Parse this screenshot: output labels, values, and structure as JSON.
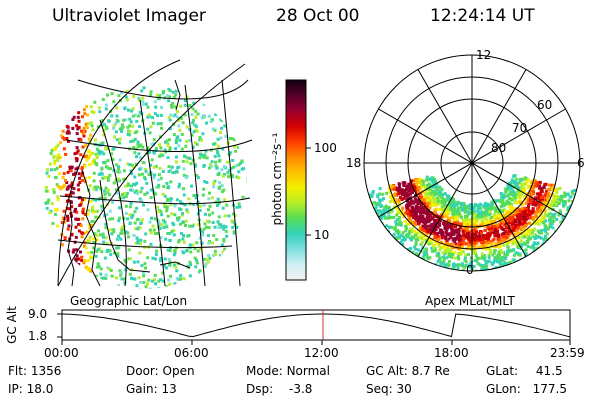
{
  "header": {
    "instrument": "Ultraviolet Imager",
    "date": "28 Oct 00",
    "time": "12:24:14 UT"
  },
  "colorbar": {
    "label": "photon cm⁻²s⁻¹",
    "ticks": [
      "100",
      "10"
    ],
    "colors": [
      "#f2f2f2",
      "#cfeff4",
      "#7fe0e0",
      "#33d2b8",
      "#55dd55",
      "#b6ee2a",
      "#f4f000",
      "#ffc200",
      "#ff8800",
      "#ff3a00",
      "#d20000",
      "#9a0030",
      "#55002a",
      "#110010"
    ]
  },
  "geo_panel": {
    "label": "Geographic Lat/Lon"
  },
  "polar_panel": {
    "label": "Apex MLat/MLT",
    "mlt_labels": [
      "12",
      "18",
      "6",
      "0"
    ],
    "lat_labels": [
      "60",
      "70",
      "80"
    ]
  },
  "altitude_plot": {
    "ylabel": "GC Alt",
    "yticks": [
      "9.0",
      "1.8"
    ],
    "xticks": [
      "00:00",
      "06:00",
      "12:00",
      "18:00",
      "23:59"
    ],
    "current_time_color": "#cc3333"
  },
  "info": {
    "flt": {
      "label": "Flt:",
      "value": "1356"
    },
    "ip": {
      "label": "IP:",
      "value": "18.0"
    },
    "door": {
      "label": "Door:",
      "value": "Open"
    },
    "gain": {
      "label": "Gain:",
      "value": "13"
    },
    "mode": {
      "label": "Mode:",
      "value": "Normal"
    },
    "dsp": {
      "label": "Dsp:",
      "value": "-3.8"
    },
    "gcalt": {
      "label": "GC Alt:",
      "value": "8.7 Re"
    },
    "seq": {
      "label": "Seq:",
      "value": "30"
    },
    "glat": {
      "label": "GLat:",
      "value": "41.5"
    },
    "glon": {
      "label": "GLon:",
      "value": "177.5"
    }
  }
}
